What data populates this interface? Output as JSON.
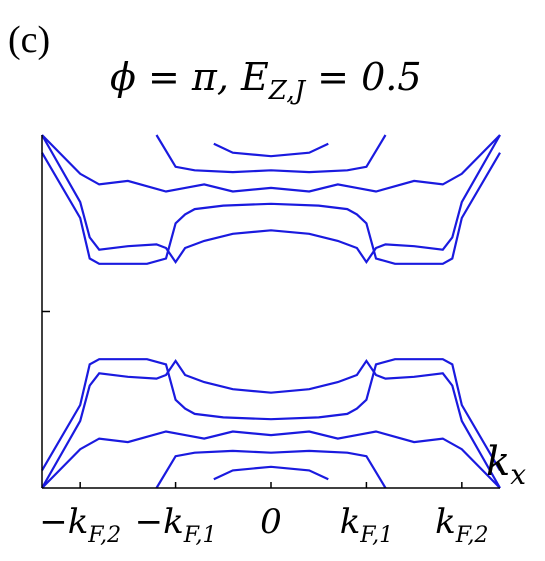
{
  "panel_label": "(c)",
  "chart_data": {
    "type": "line",
    "title": "ϕ = π, E_{Z,J} = 0.5",
    "title_parts": [
      "ϕ = π, E",
      "Z,J",
      " = 0.5"
    ],
    "xlabel": "k_x",
    "xlabel_parts": [
      "k",
      "x"
    ],
    "ylabel": "",
    "xlim": [
      -1.2,
      1.2
    ],
    "ylim": [
      -1.0,
      1.0
    ],
    "x_ticks": [
      {
        "value": -1.0,
        "label": "−k_{F,2}",
        "parts": [
          "−k",
          "F,2"
        ]
      },
      {
        "value": -0.5,
        "label": "−k_{F,1}",
        "parts": [
          "−k",
          "F,1"
        ]
      },
      {
        "value": 0.0,
        "label": "0",
        "parts": [
          "0",
          ""
        ]
      },
      {
        "value": 0.5,
        "label": "k_{F,1}",
        "parts": [
          "k",
          "F,1"
        ]
      },
      {
        "value": 1.0,
        "label": "k_{F,2}",
        "parts": [
          "k",
          "F,2"
        ]
      }
    ],
    "y_ticks": [
      0.0
    ],
    "grid": false,
    "line_color": "#1a1adf",
    "series": [
      {
        "x": [
          -1.2,
          -1.0,
          -0.95,
          -0.9,
          -0.75,
          -0.6,
          -0.55,
          -0.5,
          -0.45,
          -0.35,
          -0.2,
          0.0,
          0.2,
          0.35,
          0.45,
          0.5,
          0.55,
          0.6,
          0.75,
          0.9,
          0.95,
          1.0,
          1.2
        ],
        "y": [
          1.0,
          0.62,
          0.42,
          0.35,
          0.37,
          0.38,
          0.36,
          0.28,
          0.36,
          0.4,
          0.44,
          0.46,
          0.44,
          0.4,
          0.36,
          0.28,
          0.36,
          0.38,
          0.37,
          0.35,
          0.42,
          0.62,
          1.0
        ]
      },
      {
        "x": [
          -1.2,
          -1.0,
          -0.95,
          -0.9,
          -0.8,
          -0.65,
          -0.55,
          -0.5,
          -0.45,
          -0.4,
          -0.25,
          0.0,
          0.25,
          0.4,
          0.45,
          0.5,
          0.55,
          0.65,
          0.8,
          0.9,
          0.95,
          1.0,
          1.2
        ],
        "y": [
          0.9,
          0.53,
          0.3,
          0.27,
          0.27,
          0.27,
          0.3,
          0.5,
          0.55,
          0.58,
          0.6,
          0.61,
          0.6,
          0.58,
          0.55,
          0.5,
          0.3,
          0.27,
          0.27,
          0.27,
          0.3,
          0.53,
          0.9
        ]
      },
      {
        "x": [
          -1.2,
          -1.0,
          -0.95,
          -0.9,
          -0.75,
          -0.6,
          -0.55,
          -0.5,
          -0.45,
          -0.35,
          -0.2,
          0.0,
          0.2,
          0.35,
          0.45,
          0.5,
          0.55,
          0.6,
          0.75,
          0.9,
          0.95,
          1.0,
          1.2
        ],
        "y": [
          -1.0,
          -0.62,
          -0.42,
          -0.35,
          -0.37,
          -0.38,
          -0.36,
          -0.28,
          -0.36,
          -0.4,
          -0.44,
          -0.46,
          -0.44,
          -0.4,
          -0.36,
          -0.28,
          -0.36,
          -0.38,
          -0.37,
          -0.35,
          -0.42,
          -0.62,
          -1.0
        ]
      },
      {
        "x": [
          -1.2,
          -1.0,
          -0.95,
          -0.9,
          -0.8,
          -0.65,
          -0.55,
          -0.5,
          -0.45,
          -0.4,
          -0.25,
          0.0,
          0.25,
          0.4,
          0.45,
          0.5,
          0.55,
          0.65,
          0.8,
          0.9,
          0.95,
          1.0,
          1.2
        ],
        "y": [
          -0.9,
          -0.53,
          -0.3,
          -0.27,
          -0.27,
          -0.27,
          -0.3,
          -0.5,
          -0.55,
          -0.58,
          -0.6,
          -0.61,
          -0.6,
          -0.58,
          -0.55,
          -0.5,
          -0.3,
          -0.27,
          -0.27,
          -0.27,
          -0.3,
          -0.53,
          -0.9
        ]
      },
      {
        "x": [
          -1.2,
          -1.0,
          -0.9,
          -0.75,
          -0.55,
          -0.45,
          -0.35,
          -0.2,
          0.0,
          0.2,
          0.35,
          0.45,
          0.55,
          0.75,
          0.9,
          1.0,
          1.2
        ],
        "y": [
          1.0,
          0.78,
          0.72,
          0.74,
          0.68,
          0.7,
          0.72,
          0.68,
          0.7,
          0.68,
          0.72,
          0.7,
          0.68,
          0.74,
          0.72,
          0.78,
          1.0
        ]
      },
      {
        "x": [
          -1.2,
          -1.0,
          -0.9,
          -0.75,
          -0.55,
          -0.45,
          -0.35,
          -0.2,
          0.0,
          0.2,
          0.35,
          0.45,
          0.55,
          0.75,
          0.9,
          1.0,
          1.2
        ],
        "y": [
          -1.0,
          -0.78,
          -0.72,
          -0.74,
          -0.68,
          -0.7,
          -0.72,
          -0.68,
          -0.7,
          -0.68,
          -0.72,
          -0.7,
          -0.68,
          -0.74,
          -0.72,
          -0.78,
          -1.0
        ]
      },
      {
        "x": [
          -0.6,
          -0.5,
          -0.4,
          -0.2,
          0.0,
          0.2,
          0.4,
          0.5,
          0.6
        ],
        "y": [
          1.0,
          0.82,
          0.8,
          0.79,
          0.8,
          0.79,
          0.8,
          0.82,
          1.0
        ]
      },
      {
        "x": [
          -0.6,
          -0.5,
          -0.4,
          -0.2,
          0.0,
          0.2,
          0.4,
          0.5,
          0.6
        ],
        "y": [
          -1.0,
          -0.82,
          -0.8,
          -0.79,
          -0.8,
          -0.79,
          -0.8,
          -0.82,
          -1.0
        ]
      },
      {
        "x": [
          -0.3,
          -0.2,
          0.0,
          0.2,
          0.3
        ],
        "y": [
          0.95,
          0.9,
          0.88,
          0.9,
          0.95
        ]
      },
      {
        "x": [
          -0.3,
          -0.2,
          0.0,
          0.2,
          0.3
        ],
        "y": [
          -0.95,
          -0.9,
          -0.88,
          -0.9,
          -0.95
        ]
      }
    ]
  }
}
